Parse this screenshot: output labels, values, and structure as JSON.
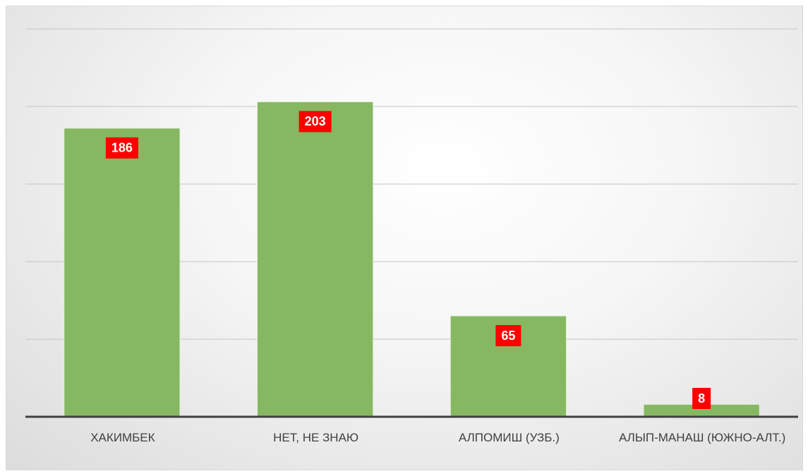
{
  "chart_data": {
    "type": "bar",
    "categories": [
      "ХАКИМБЕК",
      "НЕТ, НЕ ЗНАЮ",
      "АЛПОМИШ (УЗБ.)",
      "АЛЫП-МАНАШ (ЮЖНО-АЛТ.)"
    ],
    "values": [
      186,
      203,
      65,
      8
    ],
    "color": "#86b862",
    "label_color": "#ff0000",
    "ylim": [
      0,
      250
    ],
    "yticks": [
      0,
      50,
      100,
      150,
      200,
      250
    ],
    "grid": true
  }
}
